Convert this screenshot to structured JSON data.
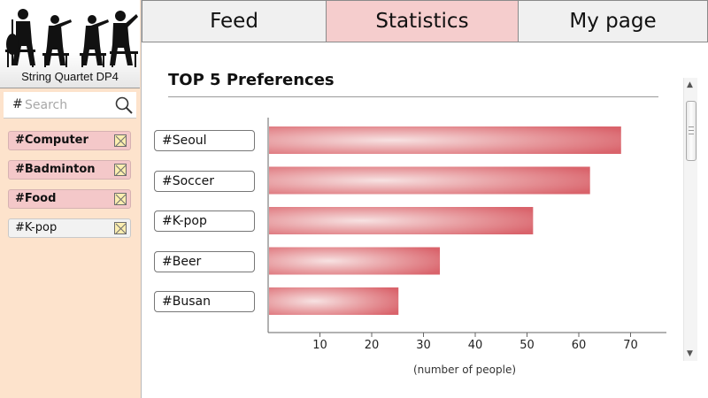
{
  "logo": {
    "text": "String Quartet DP4",
    "icon": "string-quartet-silhouette"
  },
  "search": {
    "hash": "#",
    "placeholder": "Search",
    "icon": "magnifier-icon"
  },
  "tags": [
    {
      "label": "#Computer",
      "highlighted": true
    },
    {
      "label": "#Badminton",
      "highlighted": true
    },
    {
      "label": "#Food",
      "highlighted": true
    },
    {
      "label": "#K-pop",
      "highlighted": false
    }
  ],
  "tabs": [
    {
      "label": "Feed",
      "active": false
    },
    {
      "label": "Statistics",
      "active": true
    },
    {
      "label": "My page",
      "active": false
    }
  ],
  "content": {
    "title": "TOP 5 Preferences"
  },
  "chart_data": {
    "type": "bar",
    "orientation": "horizontal",
    "title": "TOP 5 Preferences",
    "xlabel": "(number of people)",
    "ylabel": "",
    "categories": [
      "#Seoul",
      "#Soccer",
      "#K-pop",
      "#Beer",
      "#Busan"
    ],
    "values": [
      68,
      62,
      51,
      33,
      25
    ],
    "xlim": [
      0,
      75
    ],
    "xticks": [
      10,
      20,
      30,
      40,
      50,
      60,
      70
    ],
    "bar_color": "#d9636b",
    "grid": false
  },
  "colors": {
    "sidebar_bg": "#fde3cc",
    "active_tab": "#f5cdcd",
    "tag_bg": "#f4c8c9"
  }
}
